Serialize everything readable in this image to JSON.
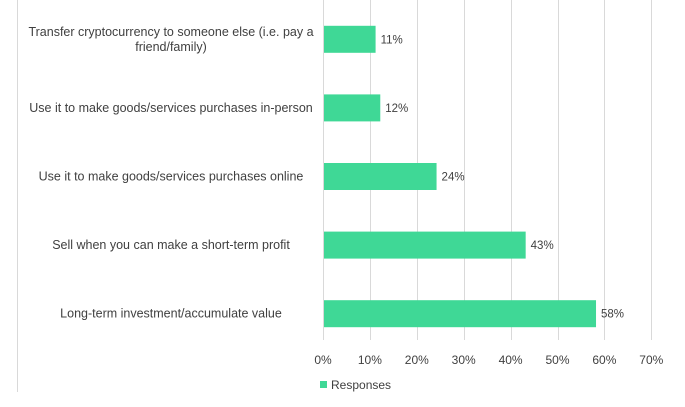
{
  "chart_data": {
    "type": "bar",
    "orientation": "horizontal",
    "categories": [
      [
        "Transfer cryptocurrency to someone else (i.e. pay a",
        "friend/family)"
      ],
      [
        "Use it to make goods/services purchases in-person"
      ],
      [
        "Use it to make goods/services purchases online"
      ],
      [
        "Sell when you can make a short-term profit"
      ],
      [
        "Long-term investment/accumulate value"
      ]
    ],
    "series": [
      {
        "name": "Responses",
        "values": [
          11,
          12,
          24,
          43,
          58
        ],
        "labels": [
          "11%",
          "12%",
          "24%",
          "43%",
          "58%"
        ],
        "color": "#3fd896"
      }
    ],
    "xlim": [
      0,
      70
    ],
    "xticks": [
      0,
      10,
      20,
      30,
      40,
      50,
      60,
      70
    ],
    "xtick_labels": [
      "0%",
      "10%",
      "20%",
      "30%",
      "40%",
      "50%",
      "60%",
      "70%"
    ],
    "gridlines": "vertical",
    "gridline_color": "#d9d9d9",
    "legend": {
      "position": "bottom-center",
      "entries": [
        "Responses"
      ]
    }
  }
}
